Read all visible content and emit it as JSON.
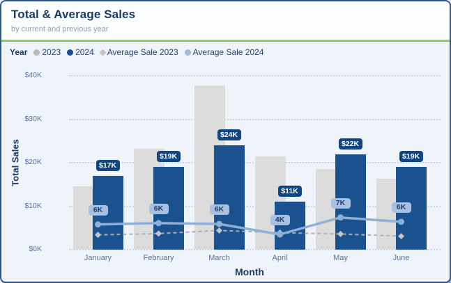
{
  "card": {
    "title": "Total & Average Sales",
    "subtitle": "by current and previous year"
  },
  "legend": {
    "title": "Year",
    "items": [
      {
        "label": "2023",
        "marker": "circle",
        "color": "#b9b9b9"
      },
      {
        "label": "2024",
        "marker": "circle",
        "color": "#1a4e8c"
      },
      {
        "label": "Average Sale 2023",
        "marker": "diamond",
        "color": "#c2c2c2"
      },
      {
        "label": "Average Sale 2024",
        "marker": "circle",
        "color": "#9fbcdf"
      }
    ]
  },
  "chart_data": {
    "type": "combo-bar-line",
    "categories": [
      "January",
      "February",
      "March",
      "April",
      "May",
      "June"
    ],
    "series": [
      {
        "name": "2023",
        "type": "bar",
        "color": "#dcdcdc",
        "values": [
          14.5,
          23.2,
          37.8,
          21.5,
          18.5,
          16.3
        ]
      },
      {
        "name": "2024",
        "type": "bar",
        "color": "#1a528f",
        "values": [
          17,
          19,
          24,
          11,
          22,
          19
        ],
        "labels": [
          "$17K",
          "$19K",
          "$24K",
          "$11K",
          "$22K",
          "$19K"
        ],
        "label_bg": "#0f4583",
        "label_color": "#ffffff"
      },
      {
        "name": "Average Sale 2023",
        "type": "line",
        "dashed": true,
        "color": "#aeaeae",
        "marker": "diamond",
        "marker_color": "#c6c6c6",
        "values": [
          3.4,
          3.7,
          4.4,
          3.9,
          3.6,
          3.1
        ]
      },
      {
        "name": "Average Sale 2024",
        "type": "line",
        "dashed": false,
        "color": "#8fafd6",
        "marker": "circle",
        "marker_color": "#8fafd6",
        "values": [
          5.8,
          6.1,
          5.9,
          3.5,
          7.4,
          6.4
        ],
        "labels": [
          "6K",
          "6K",
          "6K",
          "4K",
          "7K",
          "6K"
        ],
        "label_bg": "#a6c1e2",
        "label_color": "#1e3a66"
      }
    ],
    "xlabel": "Month",
    "ylabel": "Total Sales",
    "ylim": [
      0,
      40
    ],
    "yticks": [
      {
        "v": 0,
        "label": "$0K"
      },
      {
        "v": 10,
        "label": "$10K"
      },
      {
        "v": 20,
        "label": "$20K"
      },
      {
        "v": 30,
        "label": "$30K"
      },
      {
        "v": 40,
        "label": "$40K"
      }
    ],
    "grid": "dotted-horizontal",
    "legend_position": "top-left"
  }
}
